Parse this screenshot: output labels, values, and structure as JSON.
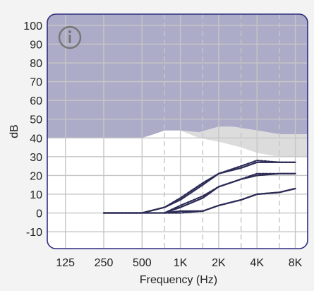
{
  "chart_data": {
    "type": "line",
    "xlabel": "Frequency (Hz)",
    "ylabel": "dB",
    "x_scale": "log",
    "x_ticks": [
      125,
      250,
      500,
      1000,
      2000,
      4000,
      8000
    ],
    "x_tick_labels": [
      "125",
      "250",
      "500",
      "1K",
      "2K",
      "4K",
      "8K"
    ],
    "x_dashed_gridlines": [
      750,
      1500,
      3000,
      6000
    ],
    "y_ticks": [
      100,
      90,
      80,
      70,
      60,
      50,
      40,
      30,
      20,
      10,
      0,
      -10
    ],
    "y_tick_labels": [
      "100",
      "90",
      "80",
      "70",
      "60",
      "50",
      "40",
      "30",
      "20",
      "10",
      "0",
      "-10"
    ],
    "ylim": [
      -19,
      106
    ],
    "xlim": [
      90,
      10000
    ],
    "grid": true,
    "info_icon": "info-icon",
    "colors": {
      "background": "#f3f3f3",
      "plot_background": "#ffffff",
      "shaded_region": "#acacc8",
      "light_region": "#dcdcdc",
      "grid": "#c6c6c6",
      "frame": "#2f2c80",
      "line": "#2b2b55",
      "icon": "#777777"
    },
    "shaded_region_floor": [
      {
        "x": 90,
        "y": 40
      },
      {
        "x": 500,
        "y": 40
      },
      {
        "x": 620,
        "y": 42
      },
      {
        "x": 750,
        "y": 44
      },
      {
        "x": 1000,
        "y": 44
      },
      {
        "x": 1400,
        "y": 43
      },
      {
        "x": 2000,
        "y": 46
      },
      {
        "x": 2600,
        "y": 46
      },
      {
        "x": 4000,
        "y": 44
      },
      {
        "x": 6000,
        "y": 42
      },
      {
        "x": 10000,
        "y": 42
      }
    ],
    "light_region": {
      "top": [
        {
          "x": 1000,
          "y": 44
        },
        {
          "x": 1400,
          "y": 43
        },
        {
          "x": 2000,
          "y": 46
        },
        {
          "x": 2600,
          "y": 46
        },
        {
          "x": 4000,
          "y": 44
        },
        {
          "x": 6000,
          "y": 42
        },
        {
          "x": 10000,
          "y": 42
        }
      ],
      "bottom": [
        {
          "x": 10000,
          "y": 30
        },
        {
          "x": 6000,
          "y": 30
        },
        {
          "x": 4000,
          "y": 32
        },
        {
          "x": 3000,
          "y": 35
        },
        {
          "x": 2000,
          "y": 38
        },
        {
          "x": 1400,
          "y": 40
        },
        {
          "x": 1000,
          "y": 44
        }
      ]
    },
    "series": [
      {
        "style": "solid",
        "points": [
          {
            "x": 250,
            "y": 0
          },
          {
            "x": 500,
            "y": 0
          },
          {
            "x": 750,
            "y": 3
          },
          {
            "x": 1000,
            "y": 7
          },
          {
            "x": 1500,
            "y": 15
          },
          {
            "x": 2000,
            "y": 21
          },
          {
            "x": 3000,
            "y": 24
          },
          {
            "x": 4000,
            "y": 27
          },
          {
            "x": 6000,
            "y": 27
          },
          {
            "x": 8000,
            "y": 27
          }
        ]
      },
      {
        "style": "dashed",
        "points": [
          {
            "x": 250,
            "y": 0
          },
          {
            "x": 500,
            "y": 0
          },
          {
            "x": 750,
            "y": 3
          },
          {
            "x": 1000,
            "y": 8
          },
          {
            "x": 1500,
            "y": 16
          },
          {
            "x": 2000,
            "y": 21
          },
          {
            "x": 3000,
            "y": 25
          },
          {
            "x": 4000,
            "y": 28
          },
          {
            "x": 6000,
            "y": 27
          },
          {
            "x": 8000,
            "y": 27
          }
        ]
      },
      {
        "style": "solid",
        "points": [
          {
            "x": 250,
            "y": 0
          },
          {
            "x": 500,
            "y": 0
          },
          {
            "x": 750,
            "y": 0
          },
          {
            "x": 1000,
            "y": 3
          },
          {
            "x": 1500,
            "y": 8
          },
          {
            "x": 2000,
            "y": 14
          },
          {
            "x": 3000,
            "y": 18
          },
          {
            "x": 4000,
            "y": 20
          },
          {
            "x": 6000,
            "y": 21
          },
          {
            "x": 8000,
            "y": 21
          }
        ]
      },
      {
        "style": "dashed",
        "points": [
          {
            "x": 750,
            "y": 0
          },
          {
            "x": 1000,
            "y": 4
          },
          {
            "x": 1500,
            "y": 9
          },
          {
            "x": 2000,
            "y": 14
          },
          {
            "x": 3000,
            "y": 18
          },
          {
            "x": 4000,
            "y": 21
          },
          {
            "x": 6000,
            "y": 21
          },
          {
            "x": 8000,
            "y": 21
          }
        ]
      },
      {
        "style": "solid",
        "points": [
          {
            "x": 750,
            "y": 0
          },
          {
            "x": 1000,
            "y": 1
          },
          {
            "x": 1500,
            "y": 1
          },
          {
            "x": 2000,
            "y": 4
          },
          {
            "x": 3000,
            "y": 7
          },
          {
            "x": 4000,
            "y": 10
          },
          {
            "x": 6000,
            "y": 11
          },
          {
            "x": 8000,
            "y": 13
          }
        ]
      },
      {
        "style": "dashed",
        "points": [
          {
            "x": 750,
            "y": 0
          },
          {
            "x": 1000,
            "y": 0
          },
          {
            "x": 1500,
            "y": 1
          },
          {
            "x": 2000,
            "y": 4
          },
          {
            "x": 3000,
            "y": 7
          },
          {
            "x": 4000,
            "y": 10
          },
          {
            "x": 6000,
            "y": 11
          },
          {
            "x": 8000,
            "y": 13
          }
        ]
      }
    ]
  }
}
